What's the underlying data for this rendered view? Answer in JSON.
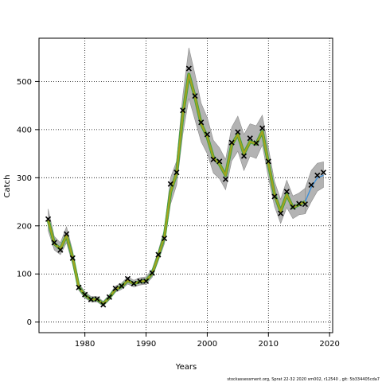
{
  "chart_data": {
    "type": "line",
    "xlabel": "Years",
    "ylabel": "Catch",
    "xlim": [
      1972.5,
      2020.5
    ],
    "ylim": [
      -22,
      590
    ],
    "x_ticks": [
      1980,
      1990,
      2000,
      2010,
      2020
    ],
    "y_ticks": [
      0,
      100,
      200,
      300,
      400,
      500
    ],
    "grid": true,
    "colors": {
      "band": "#b3b3b3",
      "band_edge": "#8c8c8c",
      "estimate": "#a3a31f",
      "estimate_outline": "#3fa33f",
      "forecast": "#3b8fd9",
      "observed_marker": "#000000"
    },
    "observed": {
      "name": "",
      "x": [
        1974,
        1975,
        1976,
        1977,
        1978,
        1979,
        1980,
        1981,
        1982,
        1983,
        1984,
        1985,
        1986,
        1987,
        1988,
        1989,
        1990,
        1991,
        1992,
        1993,
        1994,
        1995,
        1996,
        1997,
        1998,
        1999,
        2000,
        2001,
        2002,
        2003,
        2004,
        2005,
        2006,
        2007,
        2008,
        2009,
        2010,
        2011,
        2012,
        2013,
        2014,
        2015,
        2016,
        2017,
        2018,
        2019
      ],
      "y": [
        214,
        165,
        150,
        183,
        133,
        72,
        57,
        47,
        48,
        36,
        52,
        70,
        75,
        90,
        80,
        85,
        85,
        102,
        140,
        174,
        287,
        311,
        440,
        527,
        470,
        415,
        390,
        338,
        334,
        297,
        373,
        395,
        345,
        382,
        372,
        403,
        334,
        261,
        226,
        271,
        239,
        246,
        245,
        285,
        305,
        311
      ]
    },
    "estimate": {
      "name": "",
      "x": [
        1974,
        1975,
        1976,
        1977,
        1978,
        1979,
        1980,
        1981,
        1982,
        1983,
        1984,
        1985,
        1986,
        1987,
        1988,
        1989,
        1990,
        1991,
        1992,
        1993,
        1994,
        1995,
        1996,
        1997,
        1998,
        1999,
        2000,
        2001,
        2002,
        2003,
        2004,
        2005,
        2006,
        2007,
        2008,
        2009,
        2010,
        2011,
        2012,
        2013,
        2014,
        2015,
        2016
      ],
      "y": [
        212,
        163,
        152,
        180,
        134,
        73,
        56,
        47,
        47,
        38,
        51,
        68,
        74,
        86,
        80,
        84,
        86,
        101,
        137,
        178,
        270,
        310,
        430,
        515,
        468,
        412,
        385,
        342,
        328,
        305,
        368,
        390,
        350,
        375,
        370,
        396,
        330,
        265,
        230,
        265,
        238,
        244,
        250
      ],
      "lower": [
        190,
        150,
        140,
        165,
        120,
        66,
        50,
        42,
        42,
        33,
        46,
        62,
        68,
        79,
        73,
        77,
        79,
        93,
        127,
        163,
        245,
        285,
        390,
        465,
        420,
        375,
        350,
        310,
        298,
        275,
        335,
        355,
        315,
        345,
        340,
        368,
        300,
        240,
        205,
        238,
        215,
        223,
        225
      ],
      "upper": [
        235,
        178,
        165,
        198,
        148,
        81,
        63,
        53,
        53,
        43,
        57,
        75,
        81,
        94,
        87,
        92,
        94,
        110,
        148,
        193,
        300,
        335,
        470,
        570,
        515,
        455,
        425,
        378,
        362,
        338,
        405,
        428,
        390,
        412,
        408,
        430,
        362,
        292,
        255,
        295,
        262,
        268,
        278
      ]
    },
    "forecast": {
      "name": "",
      "x": [
        2016,
        2017,
        2018,
        2019
      ],
      "y": [
        250,
        280,
        300,
        305
      ],
      "lower": [
        225,
        250,
        272,
        280
      ],
      "upper": [
        278,
        315,
        330,
        333
      ]
    }
  },
  "footer": "stockassessment.org, Sprat 22-32 2020 sm002, r12540 , git: 5b334405cda7"
}
